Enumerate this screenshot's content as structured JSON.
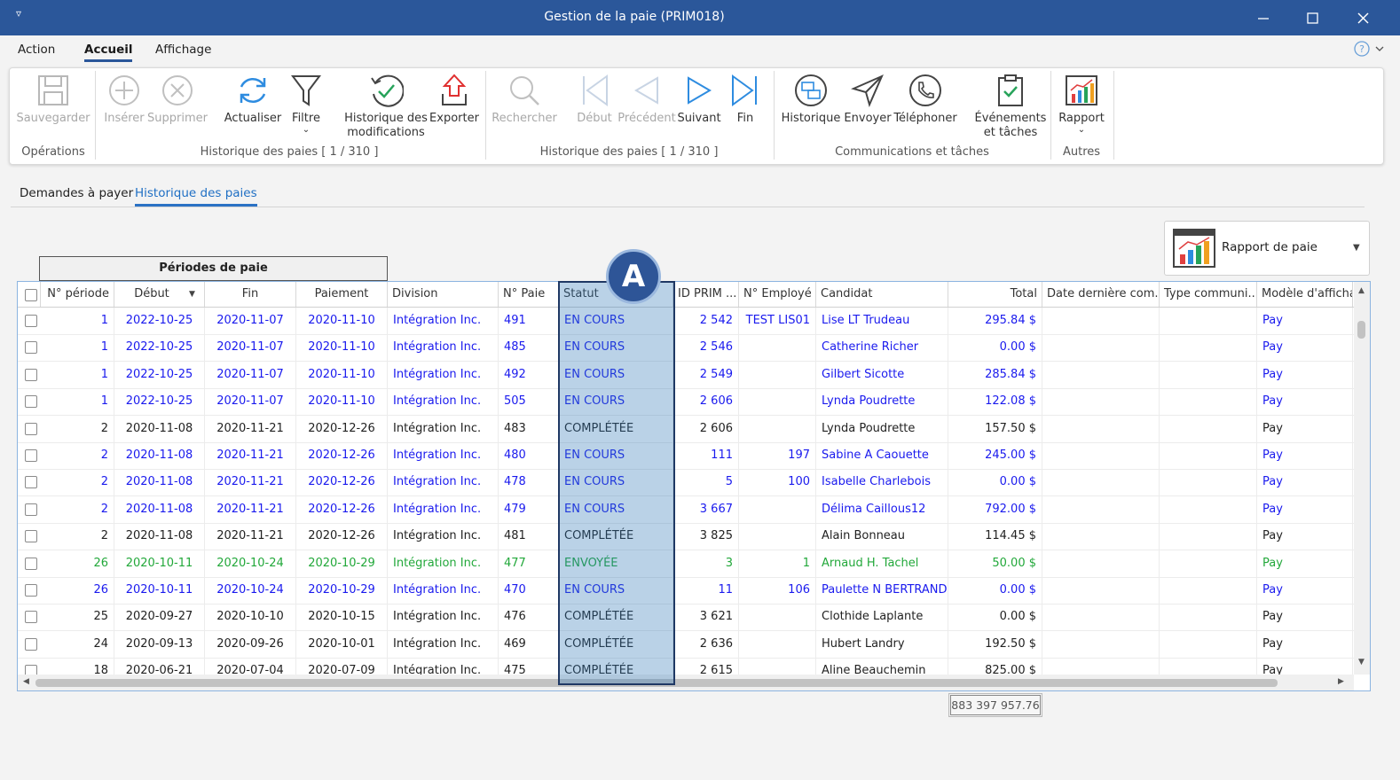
{
  "window": {
    "title": "Gestion de la paie (PRIM018)"
  },
  "menu": [
    "Action",
    "Accueil",
    "Affichage"
  ],
  "ribbon": {
    "groups": [
      {
        "label": "Opérations",
        "buttons": [
          "Sauvegarder"
        ]
      },
      {
        "label": "Historique des paies [ 1 / 310 ]",
        "buttons": [
          "Insérer",
          "Supprimer",
          "Actualiser",
          "Filtre",
          "Historique des modifications",
          "Exporter"
        ]
      },
      {
        "label": "Historique des paies [ 1 / 310 ]",
        "buttons": [
          "Rechercher",
          "Début",
          "Précédent",
          "Suivant",
          "Fin"
        ]
      },
      {
        "label": "Communications et tâches",
        "buttons": [
          "Historique",
          "Envoyer",
          "Téléphoner",
          "Événements et tâches"
        ]
      },
      {
        "label": "Autres",
        "buttons": [
          "Rapport"
        ]
      }
    ]
  },
  "tabs": [
    "Demandes à payer",
    "Historique des paies"
  ],
  "report_button": "Rapport de paie",
  "grid": {
    "group_header": "Périodes de paie",
    "annotation": "A",
    "columns": [
      "N° période",
      "Début",
      "Fin",
      "Paiement",
      "Division",
      "N° Paie",
      "Statut",
      "ID PRIM ...",
      "N° Employé",
      "Candidat",
      "Total",
      "Date dernière com...",
      "Type communi...",
      "Modèle d'affichag"
    ],
    "rows": [
      {
        "color": "#1a1aee",
        "cells": [
          "1",
          "2022-10-25",
          "2020-11-07",
          "2020-11-10",
          "Intégration Inc.",
          "491",
          "EN COURS",
          "2 542",
          "TEST LIS01",
          "Lise LT Trudeau",
          "295.84 $",
          null,
          null,
          "Pay"
        ]
      },
      {
        "color": "#1a1aee",
        "cells": [
          "1",
          "2022-10-25",
          "2020-11-07",
          "2020-11-10",
          "Intégration Inc.",
          "485",
          "EN COURS",
          "2 546",
          null,
          "Catherine Richer",
          "0.00 $",
          null,
          null,
          "Pay"
        ]
      },
      {
        "color": "#1a1aee",
        "cells": [
          "1",
          "2022-10-25",
          "2020-11-07",
          "2020-11-10",
          "Intégration Inc.",
          "492",
          "EN COURS",
          "2 549",
          null,
          "Gilbert Sicotte",
          "285.84 $",
          null,
          null,
          "Pay"
        ]
      },
      {
        "color": "#1a1aee",
        "cells": [
          "1",
          "2022-10-25",
          "2020-11-07",
          "2020-11-10",
          "Intégration Inc.",
          "505",
          "EN COURS",
          "2 606",
          null,
          "Lynda Poudrette",
          "122.08 $",
          null,
          null,
          "Pay"
        ]
      },
      {
        "color": "#222222",
        "cells": [
          "2",
          "2020-11-08",
          "2020-11-21",
          "2020-12-26",
          "Intégration Inc.",
          "483",
          "COMPLÉTÉE",
          "2 606",
          null,
          "Lynda Poudrette",
          "157.50 $",
          null,
          null,
          "Pay"
        ]
      },
      {
        "color": "#1a1aee",
        "cells": [
          "2",
          "2020-11-08",
          "2020-11-21",
          "2020-12-26",
          "Intégration Inc.",
          "480",
          "EN COURS",
          "111",
          "197",
          "Sabine A Caouette",
          "245.00 $",
          null,
          null,
          "Pay"
        ]
      },
      {
        "color": "#1a1aee",
        "cells": [
          "2",
          "2020-11-08",
          "2020-11-21",
          "2020-12-26",
          "Intégration Inc.",
          "478",
          "EN COURS",
          "5",
          "100",
          "Isabelle Charlebois",
          "0.00 $",
          null,
          null,
          "Pay"
        ]
      },
      {
        "color": "#1a1aee",
        "cells": [
          "2",
          "2020-11-08",
          "2020-11-21",
          "2020-12-26",
          "Intégration Inc.",
          "479",
          "EN COURS",
          "3 667",
          null,
          "Délima Caillous12",
          "792.00 $",
          null,
          null,
          "Pay"
        ]
      },
      {
        "color": "#222222",
        "cells": [
          "2",
          "2020-11-08",
          "2020-11-21",
          "2020-12-26",
          "Intégration Inc.",
          "481",
          "COMPLÉTÉE",
          "3 825",
          null,
          "Alain Bonneau",
          "114.45 $",
          null,
          null,
          "Pay"
        ]
      },
      {
        "color": "#22a83a",
        "cells": [
          "26",
          "2020-10-11",
          "2020-10-24",
          "2020-10-29",
          "Intégration Inc.",
          "477",
          "ENVOYÉE",
          "3",
          "1",
          "Arnaud H. Tachel",
          "50.00 $",
          null,
          null,
          "Pay"
        ]
      },
      {
        "color": "#1a1aee",
        "cells": [
          "26",
          "2020-10-11",
          "2020-10-24",
          "2020-10-29",
          "Intégration Inc.",
          "470",
          "EN COURS",
          "11",
          "106",
          "Paulette N BERTRAND",
          "0.00 $",
          null,
          null,
          "Pay"
        ]
      },
      {
        "color": "#222222",
        "cells": [
          "25",
          "2020-09-27",
          "2020-10-10",
          "2020-10-15",
          "Intégration Inc.",
          "476",
          "COMPLÉTÉE",
          "3 621",
          null,
          "Clothide Laplante",
          "0.00 $",
          null,
          null,
          "Pay"
        ]
      },
      {
        "color": "#222222",
        "cells": [
          "24",
          "2020-09-13",
          "2020-09-26",
          "2020-10-01",
          "Intégration Inc.",
          "469",
          "COMPLÉTÉE",
          "2 636",
          null,
          "Hubert Landry",
          "192.50 $",
          null,
          null,
          "Pay"
        ]
      },
      {
        "color": "#222222",
        "cells": [
          "18",
          "2020-06-21",
          "2020-07-04",
          "2020-07-09",
          "Intégration Inc.",
          "475",
          "COMPLÉTÉE",
          "2 615",
          null,
          "Aline Beauchemin",
          "825.00 $",
          null,
          null,
          "Pay"
        ]
      }
    ]
  },
  "sum": "883 397 957.76"
}
